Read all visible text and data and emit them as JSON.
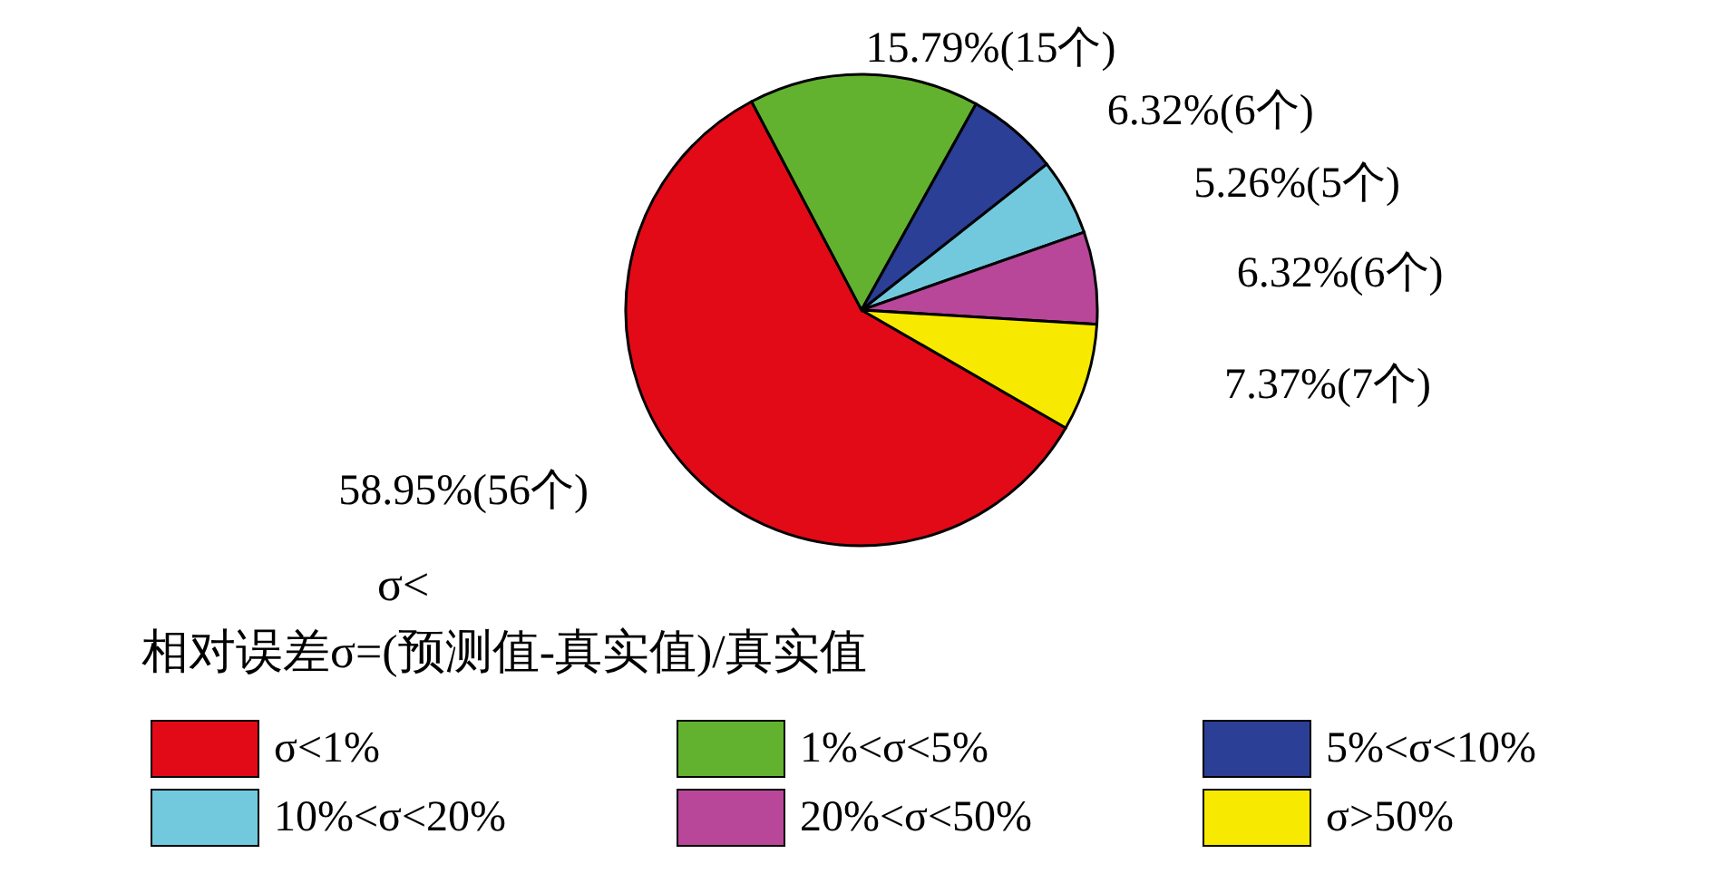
{
  "chart_data": {
    "type": "pie",
    "categories": [
      "σ<1%",
      "1%<σ<5%",
      "5%<σ<10%",
      "10%<σ<20%",
      "20%<σ<50%",
      "σ>50%"
    ],
    "values": [
      58.95,
      15.79,
      6.32,
      5.26,
      6.32,
      7.37
    ],
    "colors": [
      "#e30a17",
      "#63b22f",
      "#2a3f95",
      "#72c9de",
      "#b8479a",
      "#f7ea00"
    ],
    "value_labels": [
      "58.95%(56个)",
      "15.79%(15个)",
      "6.32%(6个)",
      "5.26%(5个)",
      "6.32%(6个)",
      "7.37%(7个)"
    ],
    "annotations": [
      "σ<",
      "相对误差σ=(预测值-真实值)/真实值"
    ],
    "legend": "bottom"
  }
}
